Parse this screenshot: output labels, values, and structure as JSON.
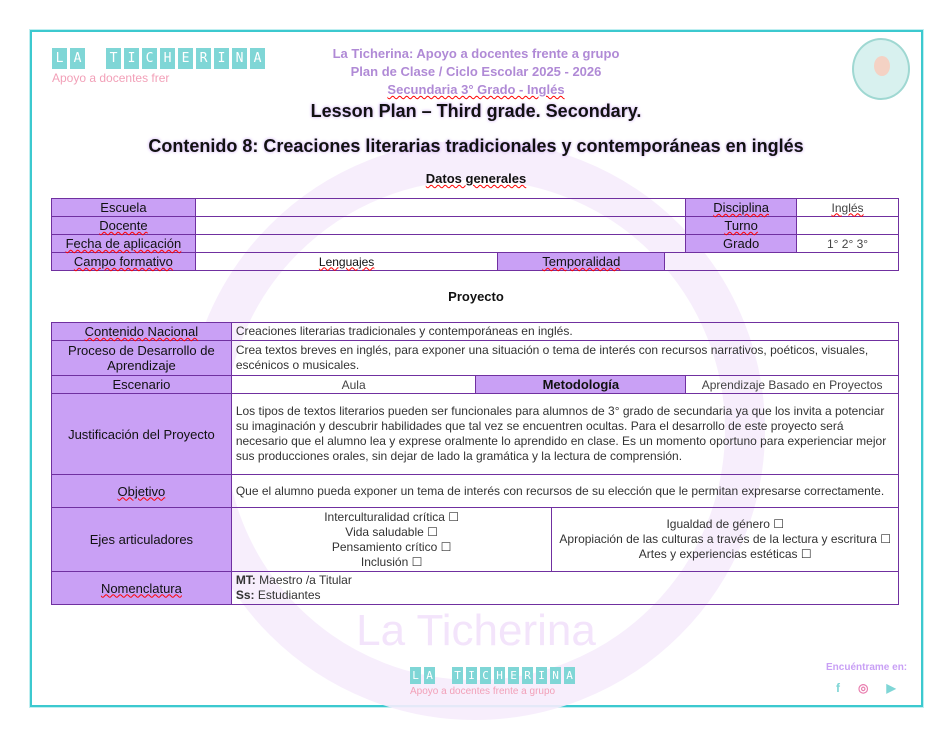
{
  "brand": {
    "letters": [
      "L",
      "A",
      " ",
      "T",
      "I",
      "C",
      "H",
      "E",
      "R",
      "I",
      "N",
      "A"
    ],
    "tagline_top": "Apoyo a docentes frer",
    "tagline_footer": "Apoyo a docentes frente a grupo",
    "watermark": "La Ticherina"
  },
  "header": {
    "line1": "La Ticherina: Apoyo a docentes frente a grupo",
    "line2": "Plan de Clase / Ciclo Escolar 2025 - 2026",
    "line3": "Secundaria 3° Grado - Inglés"
  },
  "title": "Lesson Plan – Third grade. Secondary.",
  "subtitle": "Contenido 8: Creaciones literarias tradicionales y contemporáneas en inglés",
  "datos": {
    "heading": "Datos generales",
    "escuela": "Escuela",
    "docente": "Docente",
    "fecha": "Fecha de aplicación",
    "campo": "Campo formativo",
    "campo_val": "Lenguajes",
    "temporalidad": "Temporalidad",
    "disciplina": "Disciplina",
    "disciplina_val": "Inglés",
    "turno": "Turno",
    "grado": "Grado",
    "grado_val": "1° 2° 3°"
  },
  "proyecto": {
    "heading": "Proyecto",
    "contenido_l": "Contenido Nacional",
    "contenido": "Creaciones literarias tradicionales y contemporáneas en inglés.",
    "proceso_l": "Proceso de Desarrollo de Aprendizaje",
    "proceso": "Crea textos breves en inglés, para exponer una situación o tema de interés con recursos narrativos, poéticos, visuales, escénicos o musicales.",
    "escenario_l": "Escenario",
    "escenario": "Aula",
    "metodologia_l": "Metodología",
    "metodologia": "Aprendizaje Basado en Proyectos",
    "justificacion_l": "Justificación del Proyecto",
    "justificacion": "Los tipos de textos literarios pueden ser funcionales para alumnos de 3° grado de secundaria ya que los invita a potenciar su imaginación y descubrir habilidades que tal vez se encuentren ocultas. Para el desarrollo de este proyecto será necesario que el alumno lea y exprese oralmente lo aprendido en clase. Es un momento oportuno para experienciar mejor sus producciones orales, sin dejar de lado la gramática y la lectura de comprensión.",
    "objetivo_l": "Objetivo",
    "objetivo": "Que el alumno pueda exponer un tema de interés con recursos de su elección que le permitan expresarse correctamente.",
    "ejes_l": "Ejes articuladores",
    "ejes_left": [
      "Interculturalidad crítica ☐",
      "Vida saludable ☐",
      "Pensamiento crítico ☐",
      "Inclusión ☐"
    ],
    "ejes_right": [
      "Igualdad de género ☐",
      "Apropiación de las culturas a través de la lectura y escritura ☐",
      "Artes y experiencias estéticas ☐"
    ],
    "nomen_l": "Nomenclatura",
    "mt_k": "MT:",
    "mt_v": " Maestro /a Titular",
    "ss_k": "Ss:",
    "ss_v": " Estudiantes"
  },
  "social": {
    "label": "Encuéntrame en:",
    "icons": [
      "facebook-icon",
      "instagram-icon",
      "youtube-icon"
    ],
    "colors": {
      "facebook": "#7fd6d6",
      "instagram": "#e97fb0",
      "youtube": "#7fd6d6"
    }
  }
}
